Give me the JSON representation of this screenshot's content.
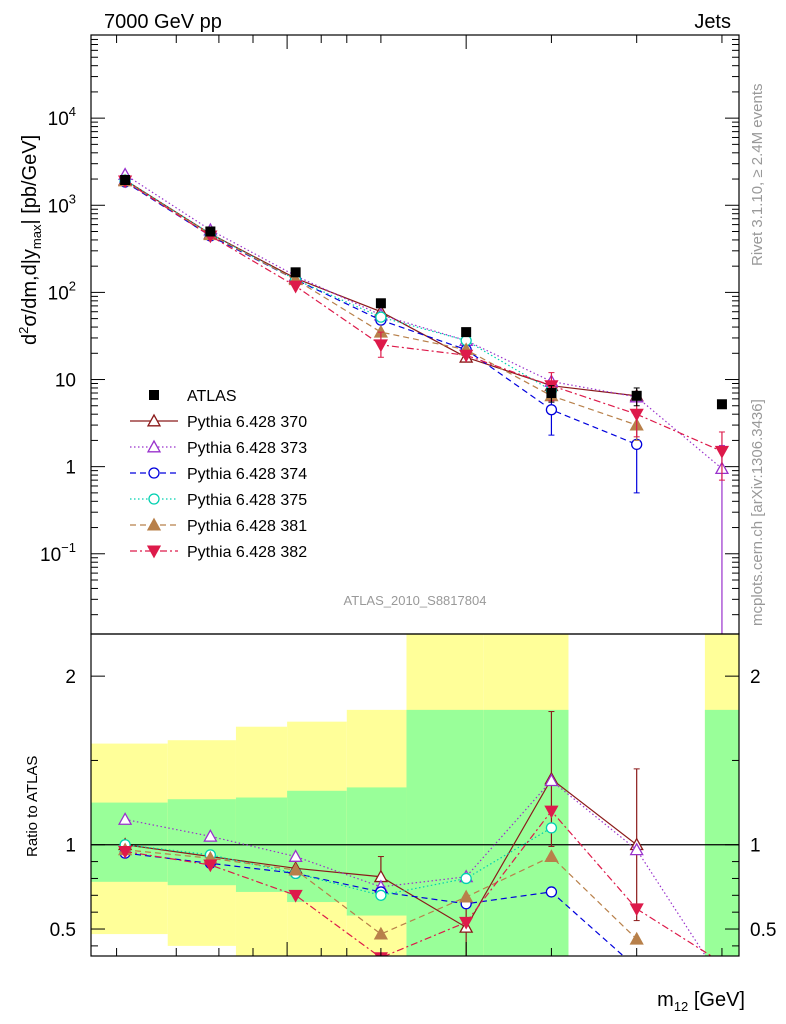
{
  "header": {
    "left": "7000 GeV pp",
    "right": "Jets"
  },
  "side_labels": {
    "rivet": "Rivet 3.1.10, ≥ 2.4M events",
    "mcplots": "mcplots.cern.ch [arXiv:1306.3436]"
  },
  "analysis_id": "ATLAS_2010_S8817804",
  "chart_data": [
    {
      "type": "scatter",
      "panel": "main",
      "ylabel": "d²σ/dm,d|y_max| [pb/GeV]",
      "ylabel_parts": {
        "main": "d",
        "sup": "2",
        "mid": "σ/dm,d|y",
        "sub": "max",
        "tail": "| [pb/GeV]"
      },
      "xlabel": "m₁₂ [GeV]",
      "xlabel_parts": {
        "main": "m",
        "sub": "12",
        "tail": " [GeV]"
      },
      "log_y": true,
      "ylim": [
        0.012,
        90000
      ],
      "y_ticks": [
        {
          "value": 0.1,
          "base": "10",
          "exp": "−1"
        },
        {
          "value": 1,
          "base": "1",
          "exp": ""
        },
        {
          "value": 10,
          "base": "10",
          "exp": ""
        },
        {
          "value": 100,
          "base": "10",
          "exp": "2"
        },
        {
          "value": 1000,
          "base": "10",
          "exp": "3"
        },
        {
          "value": 10000,
          "base": "10",
          "exp": "4"
        }
      ],
      "x": [
        1,
        2,
        3,
        4,
        5,
        6,
        7,
        8
      ],
      "bin_edges": [
        0.6,
        1.5,
        2.3,
        2.9,
        3.6,
        4.3,
        5.2,
        6.2,
        7.8,
        8.2
      ],
      "legend_position": "mid-left",
      "series": [
        {
          "name": "ATLAS",
          "color": "#000000",
          "marker": "square",
          "dash": "",
          "values": [
            1950,
            500,
            170,
            75,
            35,
            7,
            6.5,
            5.2
          ],
          "err_up": [
            0,
            0,
            0,
            0,
            0,
            1.5,
            1.5,
            0
          ],
          "err_down": [
            0,
            0,
            0,
            0,
            0,
            1.5,
            1.5,
            0
          ]
        },
        {
          "name": "Pythia 6.428 370",
          "color": "#8b1a1a",
          "marker": "triangle-open",
          "dash": "",
          "values": [
            1950,
            470,
            145,
            60,
            18,
            8.5,
            6.5,
            null
          ]
        },
        {
          "name": "Pythia 6.428 373",
          "color": "#9932cc",
          "marker": "triangle-open",
          "dash": "1.5,2.5",
          "values": [
            2250,
            520,
            155,
            55,
            28,
            9.5,
            6.3,
            0.95
          ],
          "err_up": [
            0,
            0,
            0,
            0,
            0,
            0,
            0,
            0.8
          ],
          "err_down": [
            0,
            0,
            0,
            0,
            0,
            0,
            0,
            0.94
          ]
        },
        {
          "name": "Pythia 6.428 374",
          "color": "#0000dd",
          "marker": "circle-open",
          "dash": "6,4",
          "values": [
            1850,
            445,
            140,
            48,
            22,
            4.5,
            1.8,
            null
          ],
          "err_up": [
            0,
            0,
            0,
            0,
            0,
            2.5,
            1.2,
            0
          ],
          "err_down": [
            0,
            0,
            0,
            0,
            0,
            2.2,
            1.3,
            0
          ]
        },
        {
          "name": "Pythia 6.428 375",
          "color": "#00d0b0",
          "marker": "circle-open",
          "dash": "1.5,2.5",
          "values": [
            1950,
            470,
            140,
            52,
            28,
            7.5,
            null,
            null
          ]
        },
        {
          "name": "Pythia 6.428 381",
          "color": "#b8804a",
          "marker": "triangle-filled",
          "dash": "6,4",
          "values": [
            1900,
            460,
            140,
            35,
            22,
            6.5,
            3.0,
            null
          ],
          "err_up": [
            0,
            0,
            0,
            0,
            0,
            0,
            1.2,
            0
          ],
          "err_down": [
            0,
            0,
            0,
            0,
            0,
            0,
            1.0,
            0
          ]
        },
        {
          "name": "Pythia 6.428 382",
          "color": "#dd1a4a",
          "marker": "triangle-down-filled",
          "dash": "7,3,2,3",
          "values": [
            1900,
            445,
            118,
            25,
            19,
            8.5,
            4.0,
            1.5
          ],
          "err_up": [
            0,
            0,
            0,
            10,
            0,
            3.5,
            2.5,
            1.0
          ],
          "err_down": [
            0,
            0,
            0,
            7,
            0,
            2.8,
            1.8,
            0.8
          ]
        }
      ]
    },
    {
      "type": "line",
      "panel": "ratio",
      "ylabel": "Ratio to ATLAS",
      "ylim": [
        0.34,
        2.25
      ],
      "y_ticks": [
        0.5,
        1,
        2
      ],
      "x": [
        1,
        2,
        3,
        4,
        5,
        6,
        7,
        8
      ],
      "reference_line": 1,
      "bands": [
        {
          "x0": 0.6,
          "x1": 1.5,
          "green": [
            0.78,
            1.25
          ],
          "yellow": [
            0.47,
            1.6
          ]
        },
        {
          "x0": 1.5,
          "x1": 2.3,
          "green": [
            0.76,
            1.27
          ],
          "yellow": [
            0.4,
            1.62
          ]
        },
        {
          "x0": 2.3,
          "x1": 2.9,
          "green": [
            0.72,
            1.28
          ],
          "yellow": [
            0.34,
            1.7
          ]
        },
        {
          "x0": 2.9,
          "x1": 3.6,
          "green": [
            0.66,
            1.32
          ],
          "yellow": [
            0.34,
            1.73
          ]
        },
        {
          "x0": 3.6,
          "x1": 4.3,
          "green": [
            0.58,
            1.34
          ],
          "yellow": [
            0.34,
            1.8
          ]
        },
        {
          "x0": 4.3,
          "x1": 5.2,
          "green": [
            0.34,
            1.8
          ],
          "yellow": [
            0.34,
            2.25
          ]
        },
        {
          "x0": 5.2,
          "x1": 6.2,
          "green": [
            0.34,
            1.8
          ],
          "yellow": [
            0.34,
            2.25
          ]
        },
        {
          "x0": 7.8,
          "x1": 8.2,
          "green": [
            0.34,
            1.8
          ],
          "yellow": [
            0.34,
            2.25
          ]
        }
      ],
      "series": [
        {
          "name": "Pythia 6.428 370",
          "values": [
            1.0,
            null,
            0.86,
            0.81,
            0.51,
            1.39,
            1.0,
            null
          ],
          "err_up": [
            0,
            0,
            0,
            0.12,
            0.18,
            0.4,
            0.45,
            0
          ],
          "err_down": [
            0,
            0,
            0,
            0.12,
            0.18,
            0.4,
            0.45,
            0
          ]
        },
        {
          "name": "Pythia 6.428 373",
          "values": [
            1.15,
            1.05,
            0.93,
            0.75,
            0.81,
            1.38,
            0.97,
            0.19
          ]
        },
        {
          "name": "Pythia 6.428 374",
          "values": [
            0.95,
            0.89,
            0.83,
            0.72,
            0.65,
            0.72,
            0.27,
            null
          ]
        },
        {
          "name": "Pythia 6.428 375",
          "values": [
            1.0,
            0.94,
            0.83,
            0.7,
            0.8,
            1.1,
            null,
            null
          ]
        },
        {
          "name": "Pythia 6.428 381",
          "values": [
            0.97,
            0.92,
            0.85,
            0.47,
            0.69,
            0.93,
            0.44,
            null
          ]
        },
        {
          "name": "Pythia 6.428 382",
          "values": [
            0.96,
            0.88,
            0.7,
            0.33,
            0.54,
            1.2,
            0.62,
            0.3
          ]
        }
      ]
    }
  ]
}
